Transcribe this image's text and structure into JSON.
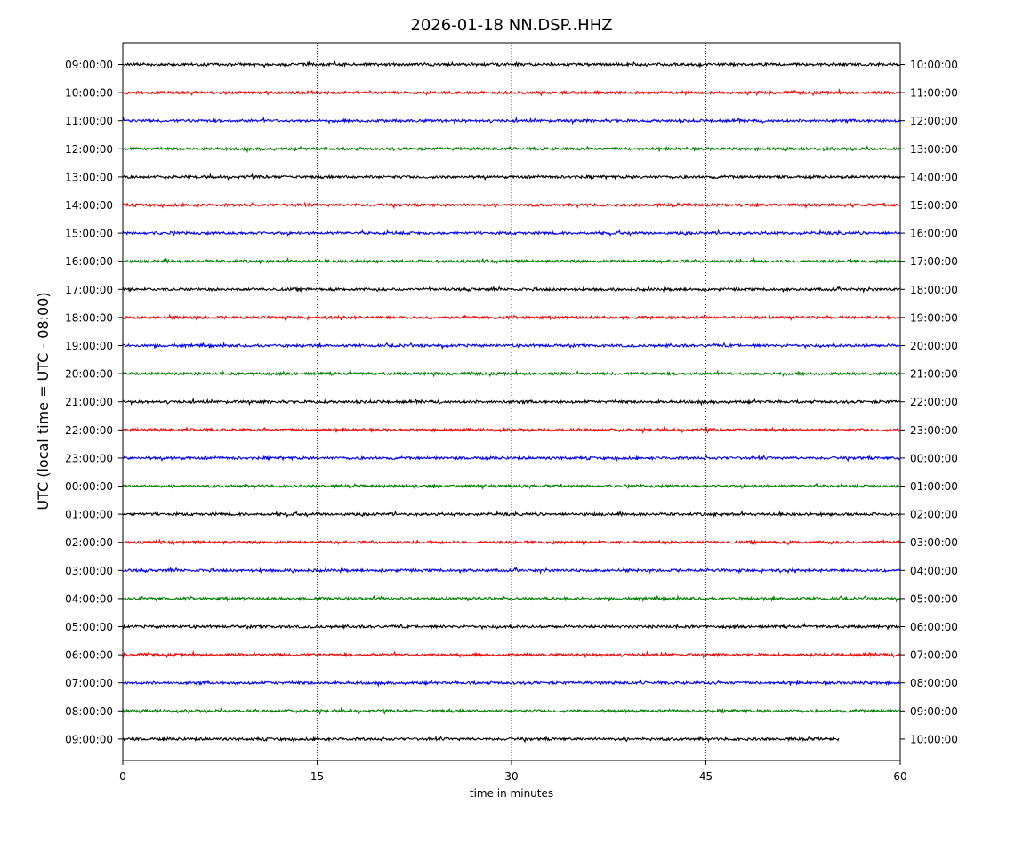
{
  "chart_data": {
    "type": "line",
    "title": "2026-01-18 NN.DSP..HHZ",
    "xlabel": "time in minutes",
    "ylabel": "UTC (local time = UTC - 08:00)",
    "xlim": [
      0,
      60
    ],
    "x_ticks": [
      "0",
      "15",
      "30",
      "45",
      "60"
    ],
    "x_tick_values": [
      0,
      15,
      30,
      45,
      60
    ],
    "grid": "vertical dotted lines at 15, 30, 45",
    "colors": [
      "#000000",
      "#ff0000",
      "#0000ff",
      "#008000"
    ],
    "left_labels": [
      "09:00:00",
      "10:00:00",
      "11:00:00",
      "12:00:00",
      "13:00:00",
      "14:00:00",
      "15:00:00",
      "16:00:00",
      "17:00:00",
      "18:00:00",
      "19:00:00",
      "20:00:00",
      "21:00:00",
      "22:00:00",
      "23:00:00",
      "00:00:00",
      "01:00:00",
      "02:00:00",
      "03:00:00",
      "04:00:00",
      "05:00:00",
      "06:00:00",
      "07:00:00",
      "08:00:00",
      "09:00:00"
    ],
    "right_labels": [
      "10:00:00",
      "11:00:00",
      "12:00:00",
      "13:00:00",
      "14:00:00",
      "15:00:00",
      "16:00:00",
      "17:00:00",
      "18:00:00",
      "19:00:00",
      "20:00:00",
      "21:00:00",
      "22:00:00",
      "23:00:00",
      "00:00:00",
      "01:00:00",
      "02:00:00",
      "03:00:00",
      "04:00:00",
      "05:00:00",
      "06:00:00",
      "07:00:00",
      "08:00:00",
      "09:00:00",
      "10:00:00"
    ],
    "traces_end_minute": [
      60,
      60,
      60,
      60,
      60,
      60,
      60,
      60,
      60,
      60,
      60,
      60,
      60,
      60,
      60,
      60,
      60,
      60,
      60,
      60,
      60,
      60,
      60,
      60,
      55.3
    ]
  }
}
